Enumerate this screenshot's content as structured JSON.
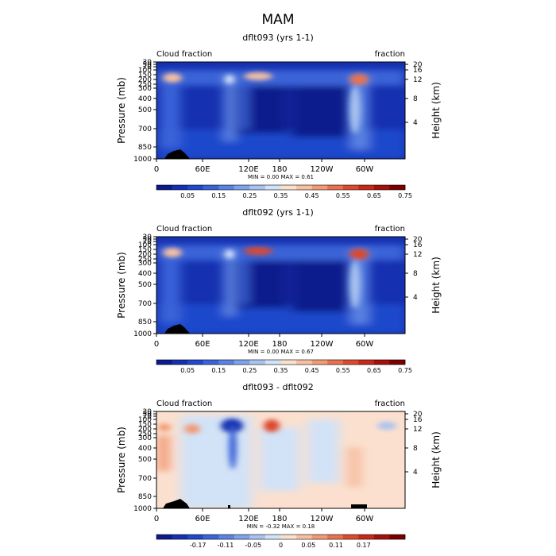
{
  "page_title": "MAM",
  "chart_data": [
    {
      "type": "heatmap",
      "title": "dflt093 (yrs 1-1)",
      "left_label": "Cloud fraction",
      "right_label": "fraction",
      "ylabel": "Pressure (mb)",
      "ylabel_right": "Height (km)",
      "x_ticks": [
        "0",
        "60E",
        "120E",
        "180",
        "120W",
        "60W"
      ],
      "y_ticks": [
        "30",
        "50",
        "70",
        "100",
        "150",
        "200",
        "250",
        "300",
        "400",
        "500",
        "700",
        "850",
        "1000"
      ],
      "height_ticks": [
        "20",
        "16",
        "12",
        "8",
        "4"
      ],
      "stats": "MIN =    0.00   MAX =    0.61",
      "colorbar_labels": [
        "0.05",
        "0.15",
        "0.25",
        "0.35",
        "0.45",
        "0.55",
        "0.65",
        "0.75"
      ]
    },
    {
      "type": "heatmap",
      "title": "dflt092 (yrs 1-1)",
      "left_label": "Cloud fraction",
      "right_label": "fraction",
      "ylabel": "Pressure (mb)",
      "ylabel_right": "Height (km)",
      "x_ticks": [
        "0",
        "60E",
        "120E",
        "180",
        "120W",
        "60W"
      ],
      "y_ticks": [
        "30",
        "50",
        "70",
        "100",
        "150",
        "200",
        "250",
        "300",
        "400",
        "500",
        "700",
        "850",
        "1000"
      ],
      "height_ticks": [
        "20",
        "16",
        "12",
        "8",
        "4"
      ],
      "stats": "MIN =    0.00   MAX =    0.67",
      "colorbar_labels": [
        "0.05",
        "0.15",
        "0.25",
        "0.35",
        "0.45",
        "0.55",
        "0.65",
        "0.75"
      ]
    },
    {
      "type": "heatmap",
      "title": "dflt093 - dflt092",
      "left_label": "Cloud fraction",
      "right_label": "fraction",
      "ylabel": "Pressure (mb)",
      "ylabel_right": "Height (km)",
      "x_ticks": [
        "0",
        "60E",
        "120E",
        "180",
        "120W",
        "60W"
      ],
      "y_ticks": [
        "30",
        "50",
        "70",
        "100",
        "150",
        "200",
        "250",
        "300",
        "400",
        "500",
        "700",
        "850",
        "1000"
      ],
      "height_ticks": [
        "20",
        "16",
        "12",
        "8",
        "4"
      ],
      "stats": "MIN =   -0.32   MAX =    0.18",
      "colorbar_labels": [
        "-0.17",
        "-0.11",
        "-0.05",
        "0",
        "0.05",
        "0.11",
        "0.17"
      ]
    }
  ],
  "colors": {
    "seq": [
      "#0b1a8c",
      "#1530b0",
      "#1f48cc",
      "#3a63d8",
      "#5a82e2",
      "#7ea3ea",
      "#a8c3f0",
      "#d2e2f7",
      "#fbe0cf",
      "#f7c0a2",
      "#f29a75",
      "#e87250",
      "#dc4a2e",
      "#c82818",
      "#a4100a",
      "#7a0000"
    ],
    "div": [
      "#0b1a8c",
      "#1530b0",
      "#1f48cc",
      "#3a63d8",
      "#5a82e2",
      "#7ea3ea",
      "#a8c3f0",
      "#d2e2f7",
      "#fbe0cf",
      "#f7c0a2",
      "#f29a75",
      "#e87250",
      "#dc4a2e",
      "#c82818",
      "#a4100a",
      "#7a0000"
    ]
  }
}
